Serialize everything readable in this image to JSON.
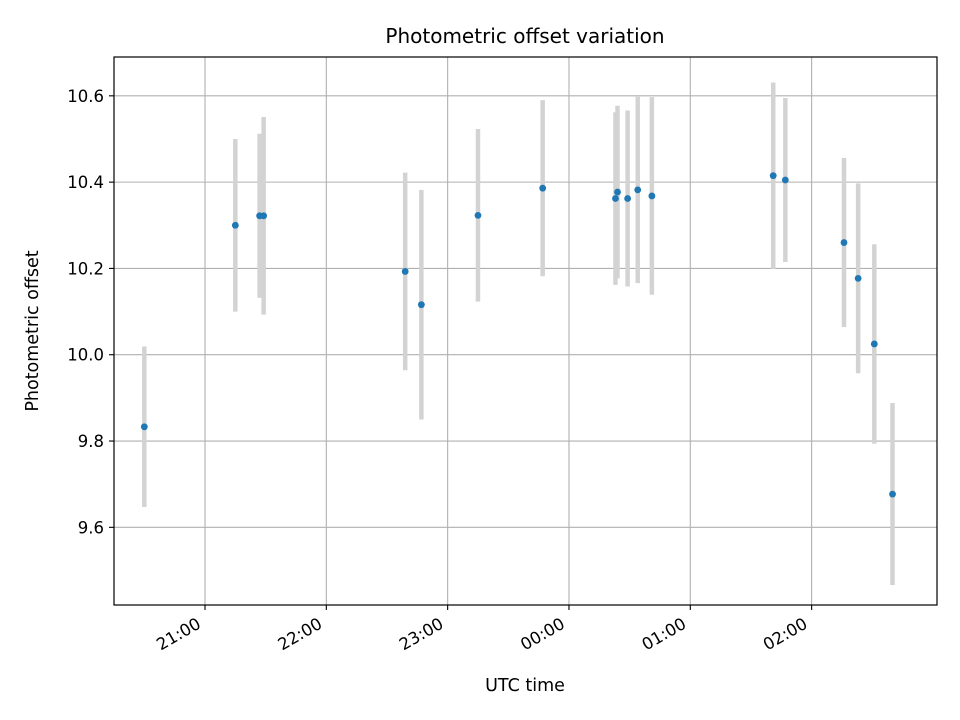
{
  "chart_data": {
    "type": "scatter",
    "title": "Photometric offset variation",
    "xlabel": "UTC time",
    "ylabel": "Photometric offset",
    "x_ticks": [
      "21:00",
      "22:00",
      "23:00",
      "00:00",
      "01:00",
      "02:00"
    ],
    "y_ticks": [
      "9.6",
      "9.8",
      "10.0",
      "10.2",
      "10.4",
      "10.6"
    ],
    "xlim": [
      "20:15",
      "03:02"
    ],
    "ylim": [
      9.42,
      10.69
    ],
    "grid": true,
    "colors": {
      "point": "#1f77b4",
      "errorbar": "#d3d3d3",
      "grid": "#b0b0b0"
    },
    "points": [
      {
        "t": "20:30",
        "y": 9.833,
        "err": 0.186
      },
      {
        "t": "21:15",
        "y": 10.3,
        "err": 0.2
      },
      {
        "t": "21:27",
        "y": 10.322,
        "err": 0.19
      },
      {
        "t": "21:29",
        "y": 10.322,
        "err": 0.229
      },
      {
        "t": "22:39",
        "y": 10.193,
        "err": 0.229
      },
      {
        "t": "22:47",
        "y": 10.116,
        "err": 0.266
      },
      {
        "t": "23:15",
        "y": 10.323,
        "err": 0.2
      },
      {
        "t": "23:47",
        "y": 10.386,
        "err": 0.204
      },
      {
        "t": "00:23",
        "y": 10.362,
        "err": 0.2
      },
      {
        "t": "00:24",
        "y": 10.377,
        "err": 0.2
      },
      {
        "t": "00:29",
        "y": 10.362,
        "err": 0.204
      },
      {
        "t": "00:34",
        "y": 10.382,
        "err": 0.216
      },
      {
        "t": "00:41",
        "y": 10.368,
        "err": 0.229
      },
      {
        "t": "01:41",
        "y": 10.415,
        "err": 0.216
      },
      {
        "t": "01:47",
        "y": 10.405,
        "err": 0.19
      },
      {
        "t": "02:16",
        "y": 10.26,
        "err": 0.196
      },
      {
        "t": "02:23",
        "y": 10.177,
        "err": 0.22
      },
      {
        "t": "02:31",
        "y": 10.025,
        "err": 0.231
      },
      {
        "t": "02:40",
        "y": 9.677,
        "err": 0.211
      }
    ]
  }
}
